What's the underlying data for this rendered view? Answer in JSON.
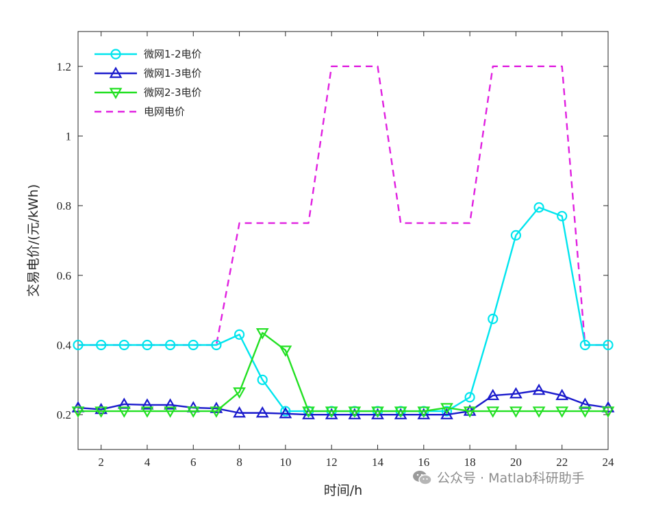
{
  "chart_data": {
    "type": "line",
    "title": "",
    "xlabel": "时间/h",
    "ylabel": "交易电价/(元/kWh)",
    "xlim": [
      1,
      24
    ],
    "ylim": [
      0.1,
      1.3
    ],
    "xticks": [
      2,
      4,
      6,
      8,
      10,
      12,
      14,
      16,
      18,
      20,
      22,
      24
    ],
    "yticks": [
      0.2,
      0.4,
      0.6,
      0.8,
      1,
      1.2
    ],
    "ytick_labels": [
      "0.2",
      "0.4",
      "0.6",
      "0.8",
      "1",
      "1.2"
    ],
    "legend_position": "top-left",
    "x": [
      1,
      2,
      3,
      4,
      5,
      6,
      7,
      8,
      9,
      10,
      11,
      12,
      13,
      14,
      15,
      16,
      17,
      18,
      19,
      20,
      21,
      22,
      23,
      24
    ],
    "series": [
      {
        "name": "微网1-2电价",
        "color": "#00e5ee",
        "marker": "circle",
        "values": [
          0.4,
          0.4,
          0.4,
          0.4,
          0.4,
          0.4,
          0.4,
          0.43,
          0.3,
          0.21,
          0.21,
          0.21,
          0.21,
          0.21,
          0.21,
          0.21,
          0.21,
          0.25,
          0.475,
          0.715,
          0.795,
          0.77,
          0.4,
          0.4
        ]
      },
      {
        "name": "微网1-3电价",
        "color": "#1a1acc",
        "marker": "triangle-up",
        "values": [
          0.22,
          0.215,
          0.23,
          0.228,
          0.228,
          0.22,
          0.218,
          0.205,
          0.205,
          0.203,
          0.2,
          0.2,
          0.2,
          0.2,
          0.2,
          0.2,
          0.2,
          0.21,
          0.255,
          0.26,
          0.27,
          0.255,
          0.23,
          0.22
        ]
      },
      {
        "name": "微网2-3电价",
        "color": "#22e022",
        "marker": "triangle-down",
        "values": [
          0.21,
          0.21,
          0.21,
          0.21,
          0.21,
          0.21,
          0.21,
          0.265,
          0.435,
          0.385,
          0.21,
          0.21,
          0.21,
          0.21,
          0.21,
          0.21,
          0.22,
          0.21,
          0.21,
          0.21,
          0.21,
          0.21,
          0.21,
          0.21
        ]
      },
      {
        "name": "电网电价",
        "color": "#e020e0",
        "style": "dashed",
        "values": [
          0.4,
          0.4,
          0.4,
          0.4,
          0.4,
          0.4,
          0.4,
          0.75,
          0.75,
          0.75,
          0.75,
          1.2,
          1.2,
          1.2,
          0.75,
          0.75,
          0.75,
          0.75,
          1.2,
          1.2,
          1.2,
          1.2,
          0.4,
          0.4
        ]
      }
    ]
  },
  "watermark": {
    "text": "公众号 · Matlab科研助手",
    "icon": "wechat-icon"
  }
}
